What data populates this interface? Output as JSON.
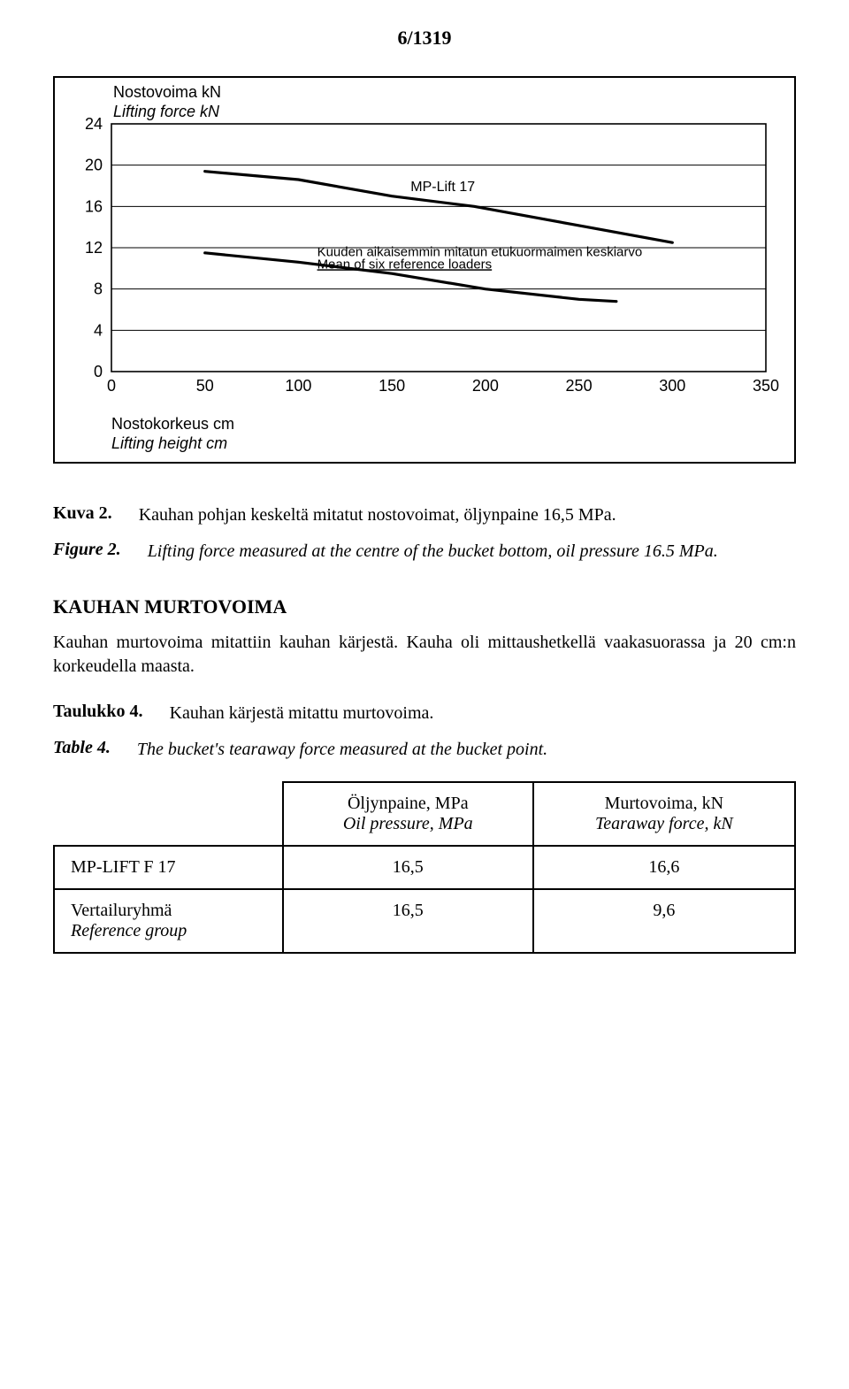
{
  "page_number": "6/1319",
  "chart": {
    "type": "line",
    "y_title": "Nostovoima kN",
    "y_title_sub": "Lifting force kN",
    "x_caption": "Nostokorkeus cm",
    "x_caption_sub": "Lifting height cm",
    "series1_label": "MP-Lift 17",
    "series2_label_a": "Kuuden aikaisemmin mitatun etukuormaimen keskiarvo",
    "series2_label_b": "Mean of six reference loaders",
    "xlim": [
      0,
      350
    ],
    "ylim": [
      0,
      24
    ],
    "xticks": [
      0,
      50,
      100,
      150,
      200,
      250,
      300,
      350
    ],
    "yticks": [
      0,
      4,
      8,
      12,
      16,
      20,
      24
    ],
    "background_color": "#ffffff",
    "grid_color": "#000000",
    "line_color": "#000000",
    "line_width": 3.2,
    "font_family": "Arial",
    "tick_fontsize": 18,
    "series1_points": [
      [
        50,
        19.4
      ],
      [
        100,
        18.6
      ],
      [
        150,
        17.0
      ],
      [
        194,
        16.0
      ],
      [
        300,
        12.5
      ]
    ],
    "series2_points": [
      [
        50,
        11.5
      ],
      [
        100,
        10.6
      ],
      [
        150,
        9.5
      ],
      [
        200,
        8.0
      ],
      [
        250,
        7.0
      ],
      [
        270,
        6.8
      ]
    ]
  },
  "caption_fig": {
    "label_fi": "Kuva 2.",
    "text_fi": "Kauhan pohjan keskeltä mitatut nostovoimat, öljynpaine 16,5 MPa.",
    "label_en": "Figure 2.",
    "text_en": "Lifting force measured at the centre of the bucket bottom, oil pressure 16.5 MPa."
  },
  "section_heading": "KAUHAN MURTOVOIMA",
  "body_para": "Kauhan murtovoima mitattiin kauhan kärjestä. Kauha oli mittaushetkellä vaakasuorassa ja 20 cm:n korkeudella maasta.",
  "caption_tab": {
    "label_fi": "Taulukko 4.",
    "text_fi": "Kauhan kärjestä mitattu murtovoima.",
    "label_en": "Table 4.",
    "text_en": "The bucket's tearaway force measured at the bucket point."
  },
  "table": {
    "col1_fi": "Öljynpaine, MPa",
    "col1_en": "Oil pressure, MPa",
    "col2_fi": "Murtovoima, kN",
    "col2_en": "Tearaway force, kN",
    "rows": [
      {
        "label": "MP-LIFT F 17",
        "c1": "16,5",
        "c2": "16,6"
      },
      {
        "label_fi": "Vertailuryhmä",
        "label_en": "Reference group",
        "c1": "16,5",
        "c2": "9,6"
      }
    ]
  }
}
